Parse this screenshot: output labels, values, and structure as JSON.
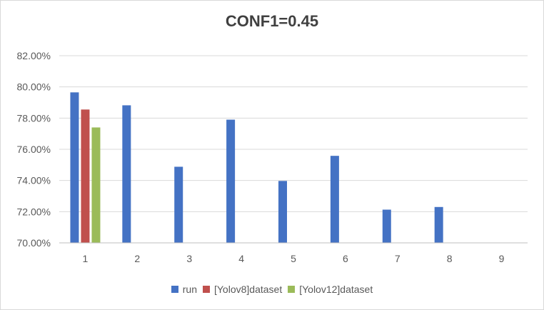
{
  "chart_data": {
    "type": "bar",
    "title": "CONF1=0.45",
    "xlabel": "",
    "ylabel": "",
    "categories": [
      "1",
      "2",
      "3",
      "4",
      "5",
      "6",
      "7",
      "8",
      "9"
    ],
    "series": [
      {
        "name": "run",
        "color": "#4472c4",
        "values": [
          79.65,
          78.82,
          74.88,
          77.9,
          73.97,
          75.58,
          72.13,
          72.3,
          null
        ]
      },
      {
        "name": "[Yolov8]dataset",
        "color": "#c0504d",
        "values": [
          78.55,
          null,
          null,
          null,
          null,
          null,
          null,
          null,
          null
        ]
      },
      {
        "name": "[Yolov12]dataset",
        "color": "#9bbb59",
        "values": [
          77.4,
          null,
          null,
          null,
          null,
          null,
          null,
          null,
          null
        ]
      }
    ],
    "ylim": [
      70,
      82
    ],
    "yticks": [
      "70.00%",
      "72.00%",
      "74.00%",
      "76.00%",
      "78.00%",
      "80.00%",
      "82.00%"
    ],
    "grid": true,
    "legend_position": "bottom"
  }
}
